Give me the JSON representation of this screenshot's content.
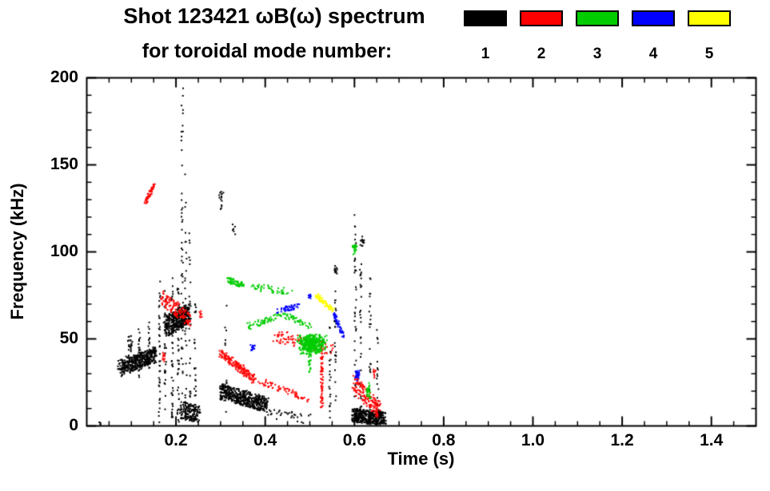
{
  "header": {
    "title_line1": "Shot 123421 ωB(ω) spectrum",
    "title_line2": "for toroidal mode number:"
  },
  "legend": {
    "entries": [
      {
        "label": "1",
        "color": "#000000"
      },
      {
        "label": "2",
        "color": "#ff0000"
      },
      {
        "label": "3",
        "color": "#00cc00"
      },
      {
        "label": "4",
        "color": "#0000ff"
      },
      {
        "label": "5",
        "color": "#ffff00"
      }
    ]
  },
  "axes": {
    "xlabel": "Time (s)",
    "ylabel": "Frequency (kHz)",
    "xlim": [
      0,
      1.5
    ],
    "ylim": [
      0,
      200
    ],
    "xticks": [
      0.2,
      0.4,
      0.6,
      0.8,
      1.0,
      1.2,
      1.4
    ],
    "xtick_labels": [
      "0.2",
      "0.4",
      "0.6",
      "0.8",
      "1.0",
      "1.2",
      "1.4"
    ],
    "yticks": [
      0,
      50,
      100,
      150,
      200
    ],
    "ytick_labels": [
      "0",
      "50",
      "100",
      "150",
      "200"
    ],
    "x_minor_step": 0.05,
    "y_minor_step": 10,
    "grid": false,
    "frame_color": "#000000"
  },
  "chart_data": {
    "type": "scatter",
    "title": "Shot 123421 ωB(ω) spectrum for toroidal mode number:",
    "xlabel": "Time (s)",
    "ylabel": "Frequency (kHz)",
    "xlim": [
      0,
      1.5
    ],
    "ylim": [
      0,
      200
    ],
    "legend_position": "top-right",
    "series": [
      {
        "name": "n=1",
        "mode": 1,
        "color": "#000000",
        "clusters": [
          {
            "kind": "streak",
            "x1": 0.075,
            "y1": 33,
            "x2": 0.155,
            "y2": 41,
            "jx": 0.006,
            "jy": 4.5,
            "n": 420
          },
          {
            "kind": "streak",
            "x1": 0.09,
            "y1": 38,
            "x2": 0.1,
            "y2": 52,
            "jx": 0.004,
            "jy": 3,
            "n": 25
          },
          {
            "kind": "vline",
            "x": 0.118,
            "y1": 28,
            "y2": 57,
            "jx": 0.002,
            "n": 22
          },
          {
            "kind": "vline",
            "x": 0.14,
            "y1": 32,
            "y2": 62,
            "jx": 0.002,
            "n": 18
          },
          {
            "kind": "vline",
            "x": 0.163,
            "y1": 2,
            "y2": 85,
            "jx": 0.002,
            "n": 40
          },
          {
            "kind": "vline",
            "x": 0.176,
            "y1": 4,
            "y2": 80,
            "jx": 0.002,
            "n": 30
          },
          {
            "kind": "vline",
            "x": 0.192,
            "y1": 2,
            "y2": 86,
            "jx": 0.002,
            "n": 45
          },
          {
            "kind": "vline",
            "x": 0.205,
            "y1": 2,
            "y2": 80,
            "jx": 0.002,
            "n": 35
          },
          {
            "kind": "vline",
            "x": 0.214,
            "y1": 5,
            "y2": 198,
            "jx": 0.002,
            "n": 50
          },
          {
            "kind": "vline",
            "x": 0.222,
            "y1": 5,
            "y2": 150,
            "jx": 0.002,
            "n": 35
          },
          {
            "kind": "vline",
            "x": 0.231,
            "y1": 3,
            "y2": 120,
            "jx": 0.002,
            "n": 28
          },
          {
            "kind": "vline",
            "x": 0.243,
            "y1": 2,
            "y2": 78,
            "jx": 0.002,
            "n": 22
          },
          {
            "kind": "streak",
            "x1": 0.178,
            "y1": 57,
            "x2": 0.228,
            "y2": 65,
            "jx": 0.006,
            "jy": 6,
            "n": 380
          },
          {
            "kind": "streak",
            "x1": 0.21,
            "y1": 9,
            "x2": 0.252,
            "y2": 7,
            "jx": 0.004,
            "jy": 5,
            "n": 160
          },
          {
            "kind": "streak",
            "x1": 0.3,
            "y1": 20,
            "x2": 0.405,
            "y2": 12,
            "jx": 0.005,
            "jy": 4.5,
            "n": 480
          },
          {
            "kind": "blob",
            "cx": 0.302,
            "cy": 130,
            "rx": 0.006,
            "ry": 7,
            "n": 16
          },
          {
            "kind": "blob",
            "cx": 0.33,
            "cy": 113,
            "rx": 0.004,
            "ry": 4,
            "n": 6
          },
          {
            "kind": "vline",
            "x": 0.312,
            "y1": 8,
            "y2": 70,
            "jx": 0.002,
            "n": 14
          },
          {
            "kind": "streak",
            "x1": 0.4,
            "y1": 8,
            "x2": 0.5,
            "y2": 4,
            "jx": 0.01,
            "jy": 3,
            "n": 30
          },
          {
            "kind": "vline",
            "x": 0.545,
            "y1": 2,
            "y2": 60,
            "jx": 0.002,
            "n": 20
          },
          {
            "kind": "vline",
            "x": 0.557,
            "y1": 2,
            "y2": 95,
            "jx": 0.002,
            "n": 26
          },
          {
            "kind": "blob",
            "cx": 0.558,
            "cy": 90,
            "rx": 0.004,
            "ry": 4,
            "n": 10
          },
          {
            "kind": "vline",
            "x": 0.602,
            "y1": 3,
            "y2": 122,
            "jx": 0.002,
            "n": 40
          },
          {
            "kind": "vline",
            "x": 0.614,
            "y1": 3,
            "y2": 100,
            "jx": 0.002,
            "n": 30
          },
          {
            "kind": "blob",
            "cx": 0.617,
            "cy": 106,
            "rx": 0.005,
            "ry": 4,
            "n": 14
          },
          {
            "kind": "vline",
            "x": 0.635,
            "y1": 2,
            "y2": 85,
            "jx": 0.002,
            "n": 25
          },
          {
            "kind": "vline",
            "x": 0.652,
            "y1": 2,
            "y2": 60,
            "jx": 0.002,
            "n": 18
          },
          {
            "kind": "streak",
            "x1": 0.598,
            "y1": 6,
            "x2": 0.668,
            "y2": 4,
            "jx": 0.005,
            "jy": 4,
            "n": 420
          },
          {
            "kind": "blob",
            "cx": 0.03,
            "cy": 2,
            "rx": 0.003,
            "ry": 1.5,
            "n": 4
          }
        ]
      },
      {
        "name": "n=2",
        "mode": 2,
        "color": "#ff0000",
        "clusters": [
          {
            "kind": "streak",
            "x1": 0.131,
            "y1": 128,
            "x2": 0.152,
            "y2": 139,
            "jx": 0.002,
            "jy": 1.8,
            "n": 60
          },
          {
            "kind": "streak",
            "x1": 0.168,
            "y1": 73,
            "x2": 0.235,
            "y2": 61,
            "jx": 0.004,
            "jy": 4.5,
            "n": 130
          },
          {
            "kind": "blob",
            "cx": 0.172,
            "cy": 40,
            "rx": 0.004,
            "ry": 4,
            "n": 14
          },
          {
            "kind": "blob",
            "cx": 0.255,
            "cy": 64,
            "rx": 0.004,
            "ry": 3,
            "n": 8
          },
          {
            "kind": "streak",
            "x1": 0.3,
            "y1": 42,
            "x2": 0.375,
            "y2": 27,
            "jx": 0.004,
            "jy": 2.5,
            "n": 170
          },
          {
            "kind": "streak",
            "x1": 0.375,
            "y1": 27,
            "x2": 0.5,
            "y2": 15,
            "jx": 0.006,
            "jy": 2,
            "n": 70
          },
          {
            "kind": "streak",
            "x1": 0.42,
            "y1": 52,
            "x2": 0.55,
            "y2": 44,
            "jx": 0.008,
            "jy": 3.5,
            "n": 90
          },
          {
            "kind": "vline",
            "x": 0.527,
            "y1": 8,
            "y2": 46,
            "jx": 0.003,
            "n": 70
          },
          {
            "kind": "streak",
            "x1": 0.6,
            "y1": 24,
            "x2": 0.655,
            "y2": 9,
            "jx": 0.006,
            "jy": 5,
            "n": 160
          },
          {
            "kind": "blob",
            "cx": 0.645,
            "cy": 30,
            "rx": 0.004,
            "ry": 3,
            "n": 10
          }
        ]
      },
      {
        "name": "n=3",
        "mode": 3,
        "color": "#00cc00",
        "clusters": [
          {
            "kind": "streak",
            "x1": 0.315,
            "y1": 84,
            "x2": 0.35,
            "y2": 81,
            "jx": 0.003,
            "jy": 1.8,
            "n": 60
          },
          {
            "kind": "streak",
            "x1": 0.37,
            "y1": 80,
            "x2": 0.46,
            "y2": 77,
            "jx": 0.005,
            "jy": 2,
            "n": 45
          },
          {
            "kind": "streak",
            "x1": 0.36,
            "y1": 57,
            "x2": 0.44,
            "y2": 64,
            "jx": 0.004,
            "jy": 1.8,
            "n": 60
          },
          {
            "kind": "streak",
            "x1": 0.44,
            "y1": 64,
            "x2": 0.5,
            "y2": 57,
            "jx": 0.004,
            "jy": 1.8,
            "n": 45
          },
          {
            "kind": "blob",
            "cx": 0.505,
            "cy": 47,
            "rx": 0.035,
            "ry": 6.5,
            "n": 420
          },
          {
            "kind": "vline",
            "x": 0.5,
            "y1": 30,
            "y2": 42,
            "jx": 0.003,
            "n": 20
          },
          {
            "kind": "blob",
            "cx": 0.6,
            "cy": 102,
            "rx": 0.007,
            "ry": 4,
            "n": 22
          },
          {
            "kind": "blob",
            "cx": 0.632,
            "cy": 20,
            "rx": 0.006,
            "ry": 5,
            "n": 30
          }
        ]
      },
      {
        "name": "n=4",
        "mode": 4,
        "color": "#0000ff",
        "clusters": [
          {
            "kind": "blob",
            "cx": 0.372,
            "cy": 45,
            "rx": 0.006,
            "ry": 2,
            "n": 15
          },
          {
            "kind": "streak",
            "x1": 0.425,
            "y1": 66,
            "x2": 0.475,
            "y2": 69,
            "jx": 0.004,
            "jy": 1.5,
            "n": 50
          },
          {
            "kind": "blob",
            "cx": 0.5,
            "cy": 75,
            "rx": 0.004,
            "ry": 2,
            "n": 10
          },
          {
            "kind": "streak",
            "x1": 0.553,
            "y1": 65,
            "x2": 0.575,
            "y2": 52,
            "jx": 0.002,
            "jy": 1.5,
            "n": 55
          },
          {
            "kind": "blob",
            "cx": 0.607,
            "cy": 29,
            "rx": 0.006,
            "ry": 3.5,
            "n": 30
          }
        ]
      },
      {
        "name": "n=5",
        "mode": 5,
        "color": "#ffff00",
        "clusters": [
          {
            "kind": "streak",
            "x1": 0.515,
            "y1": 75,
            "x2": 0.553,
            "y2": 66,
            "jx": 0.003,
            "jy": 1.5,
            "n": 70
          }
        ]
      }
    ]
  }
}
